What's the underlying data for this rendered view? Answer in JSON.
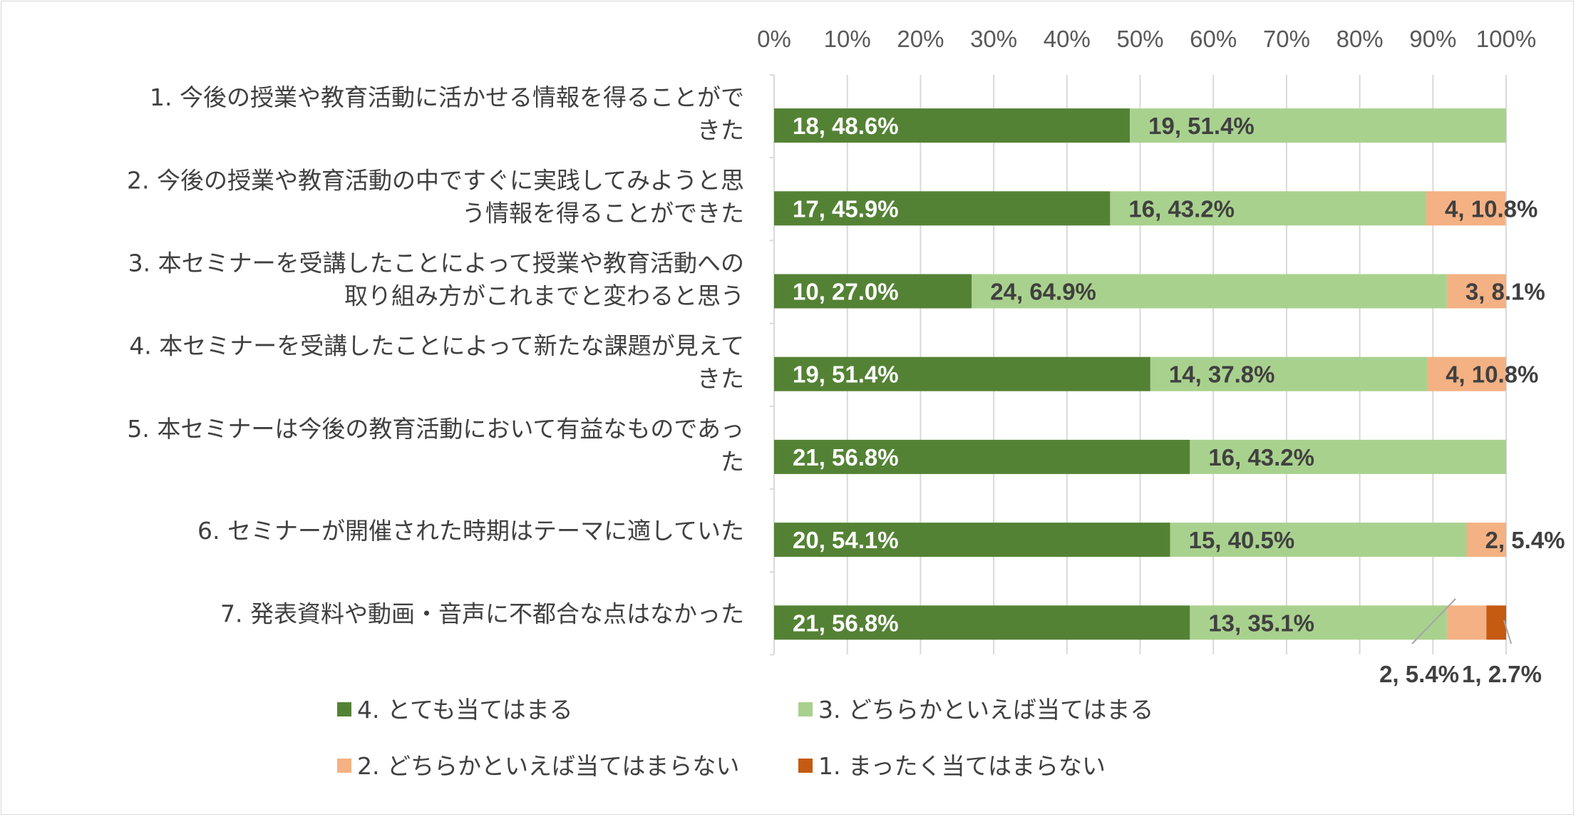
{
  "chart_data": {
    "type": "bar",
    "orientation": "horizontal",
    "stacked": "100%",
    "title": "",
    "xlabel": "",
    "ylabel": "",
    "xlim": [
      0,
      100
    ],
    "x_ticks": [
      "0%",
      "10%",
      "20%",
      "30%",
      "40%",
      "50%",
      "60%",
      "70%",
      "80%",
      "90%",
      "100%"
    ],
    "grid": true,
    "legend_position": "bottom",
    "categories": [
      [
        "1. 今後の授業や教育活動に活かせる情報を得ることがで",
        "きた"
      ],
      [
        "2. 今後の授業や教育活動の中ですぐに実践してみようと思",
        "う情報を得ることができた"
      ],
      [
        "3. 本セミナーを受講したことによって授業や教育活動への",
        "取り組み方がこれまでと変わると思う"
      ],
      [
        "4. 本セミナーを受講したことによって新たな課題が見えて",
        "きた"
      ],
      [
        "5. 本セミナーは今後の教育活動において有益なものであっ",
        "た"
      ],
      [
        "6. セミナーが開催された時期はテーマに適していた"
      ],
      [
        "7. 発表資料や動画・音声に不都合な点はなかった"
      ]
    ],
    "series": [
      {
        "name": "4. とても当てはまる",
        "color": "#548235",
        "values": [
          48.6,
          45.9,
          27.0,
          51.4,
          56.8,
          54.1,
          56.8
        ],
        "labels": [
          "18, 48.6%",
          "17, 45.9%",
          "10, 27.0%",
          "19, 51.4%",
          "21, 56.8%",
          "20, 54.1%",
          "21, 56.8%"
        ]
      },
      {
        "name": "3. どちらかといえば当てはまる",
        "color": "#a9d18e",
        "values": [
          51.4,
          43.2,
          64.9,
          37.8,
          43.2,
          40.5,
          35.1
        ],
        "labels": [
          "19, 51.4%",
          "16, 43.2%",
          "24, 64.9%",
          "14, 37.8%",
          "16, 43.2%",
          "15, 40.5%",
          "13, 35.1%"
        ]
      },
      {
        "name": "2. どちらかといえば当てはまらない",
        "color": "#f4b183",
        "values": [
          0,
          10.8,
          8.1,
          10.8,
          0,
          5.4,
          5.4
        ],
        "labels": [
          "",
          "4, 10.8%",
          "3, 8.1%",
          "4, 10.8%",
          "",
          "2, 5.4%",
          "2, 5.4%"
        ]
      },
      {
        "name": "1. まったく当てはまらない",
        "color": "#c55a11",
        "values": [
          0,
          0,
          0,
          0,
          0,
          0,
          2.7
        ],
        "labels": [
          "",
          "",
          "",
          "",
          "",
          "",
          "1, 2.7%"
        ]
      }
    ]
  }
}
